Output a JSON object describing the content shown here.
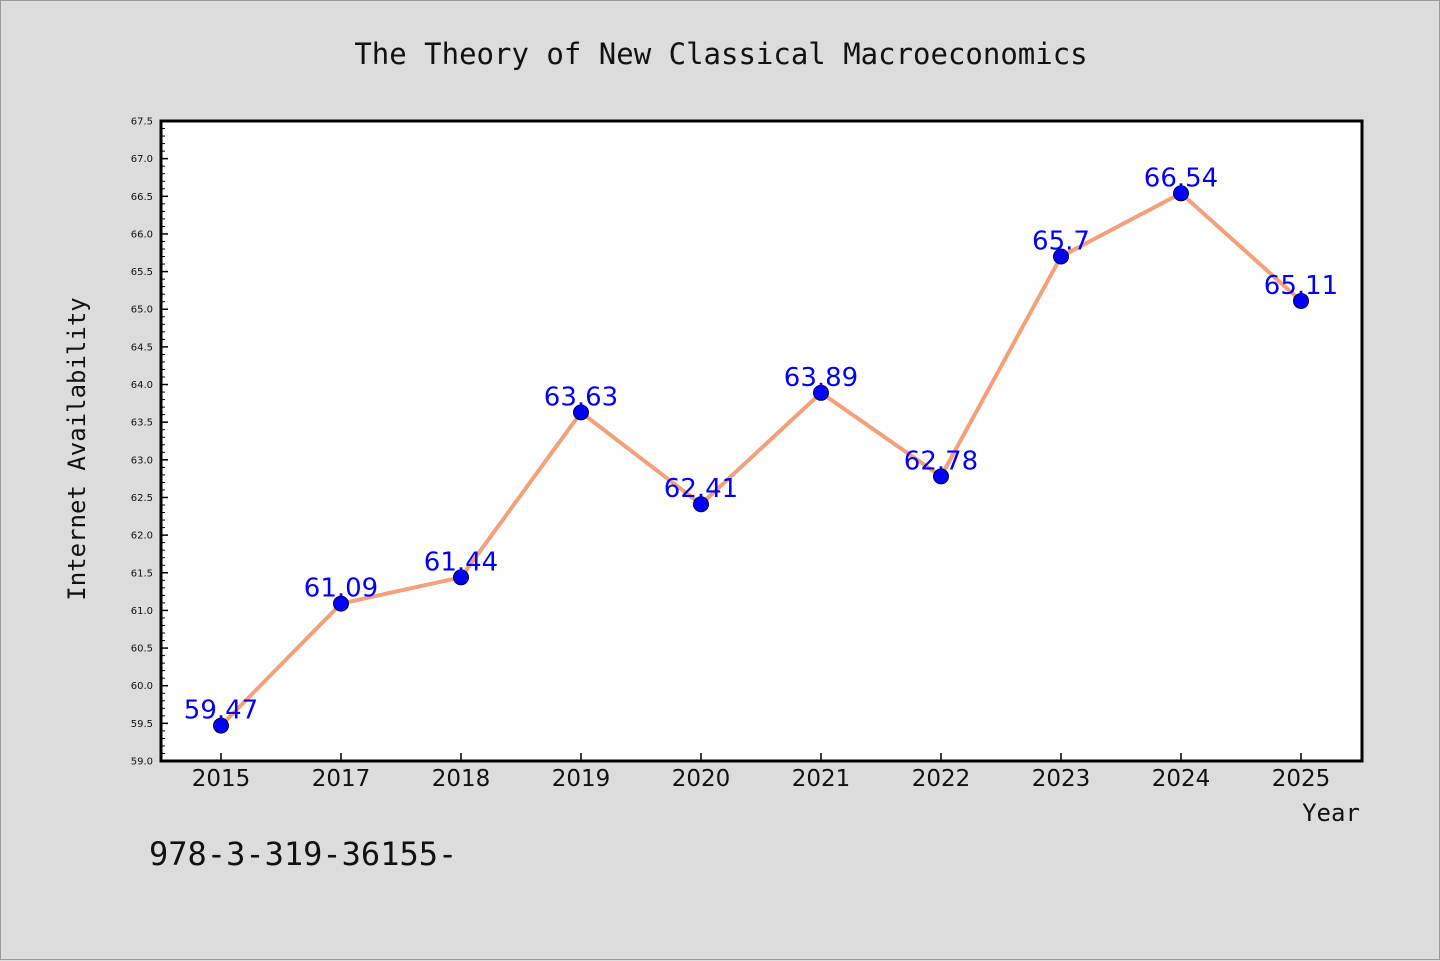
{
  "chart_data": {
    "type": "line",
    "title": "The Theory of New Classical Macroeconomics",
    "xlabel": "Year",
    "ylabel": "Internet Availability",
    "categories": [
      "2015",
      "2017",
      "2018",
      "2019",
      "2020",
      "2021",
      "2022",
      "2023",
      "2024",
      "2025"
    ],
    "series": [
      {
        "values": [
          59.47,
          61.09,
          61.44,
          63.63,
          62.41,
          63.89,
          62.78,
          65.7,
          66.54,
          65.11
        ],
        "labels": [
          "59.47",
          "61.09",
          "61.44",
          "63.63",
          "62.41",
          "63.89",
          "62.78",
          "65.7",
          "66.54",
          "65.11"
        ],
        "line_color": "#f4a07a",
        "marker_color": "#0000ff"
      }
    ],
    "ylim": [
      59.0,
      67.5
    ],
    "y_ticks": [
      "59.0",
      "59.5",
      "60.0",
      "60.5",
      "61.0",
      "61.5",
      "62.0",
      "62.5",
      "63.0",
      "63.5",
      "64.0",
      "64.5",
      "65.0",
      "65.5",
      "66.0",
      "66.5",
      "67.0",
      "67.5"
    ],
    "grid": false,
    "legend": "none"
  },
  "footer_text": "978-3-319-36155-",
  "colors": {
    "background": "#dcdcdc",
    "plot_background": "#ffffff",
    "axis": "#000000",
    "label_color": "#0000ff"
  }
}
